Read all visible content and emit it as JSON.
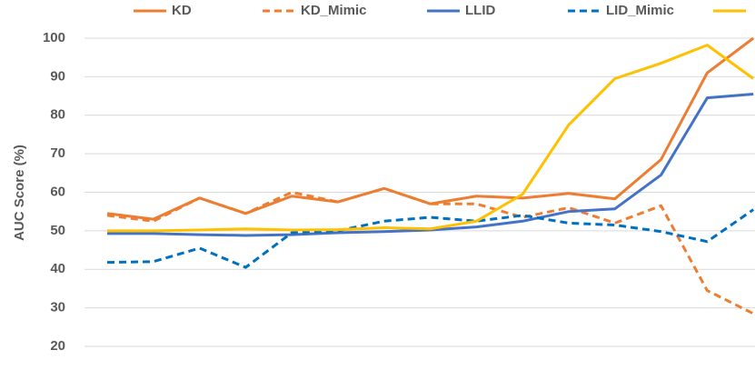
{
  "chart_data": {
    "type": "line",
    "y_label": "AUC Score (%)",
    "categories": [
      null,
      null,
      null,
      null,
      null,
      null,
      null,
      null,
      null,
      null,
      null,
      null,
      null,
      null,
      null
    ],
    "ylim": [
      20,
      100
    ],
    "yticks": [
      20,
      30,
      40,
      50,
      60,
      70,
      80,
      90,
      100
    ],
    "grid": true,
    "legend": "top",
    "series": [
      {
        "name": "KD",
        "color": "#ed7d31",
        "dashed": false,
        "values": [
          54.5,
          53,
          58.5,
          54.5,
          59,
          57.5,
          61,
          57,
          59,
          58.5,
          59.7,
          58.3,
          68.5,
          91,
          100
        ]
      },
      {
        "name": "KD_Mimic",
        "color": "#ed7d31",
        "dashed": true,
        "values": [
          54,
          52.5,
          58.5,
          54.5,
          60,
          57.5,
          61,
          57,
          57,
          53.5,
          56,
          52,
          56.5,
          34.5,
          28.5
        ]
      },
      {
        "name": "LLID",
        "color": "#4472c4",
        "dashed": false,
        "values": [
          49.3,
          49.3,
          49,
          48.8,
          49,
          49.5,
          49.8,
          50.2,
          51,
          52.5,
          55,
          55.7,
          64.5,
          84.5,
          85.5
        ]
      },
      {
        "name": "LID_Mimic",
        "color": "#0070c0",
        "dashed": true,
        "values": [
          41.8,
          42,
          45.5,
          40.5,
          49.5,
          50,
          52.5,
          53.5,
          52.5,
          54,
          52,
          51.5,
          49.8,
          47.2,
          55.5
        ]
      },
      {
        "color": "#ffc000",
        "dashed": false,
        "values": [
          50,
          50,
          50.2,
          50.5,
          50.2,
          50.3,
          50.8,
          50.5,
          52.5,
          59.5,
          77.5,
          89.5,
          93.5,
          98.2,
          89.5
        ]
      }
    ]
  }
}
